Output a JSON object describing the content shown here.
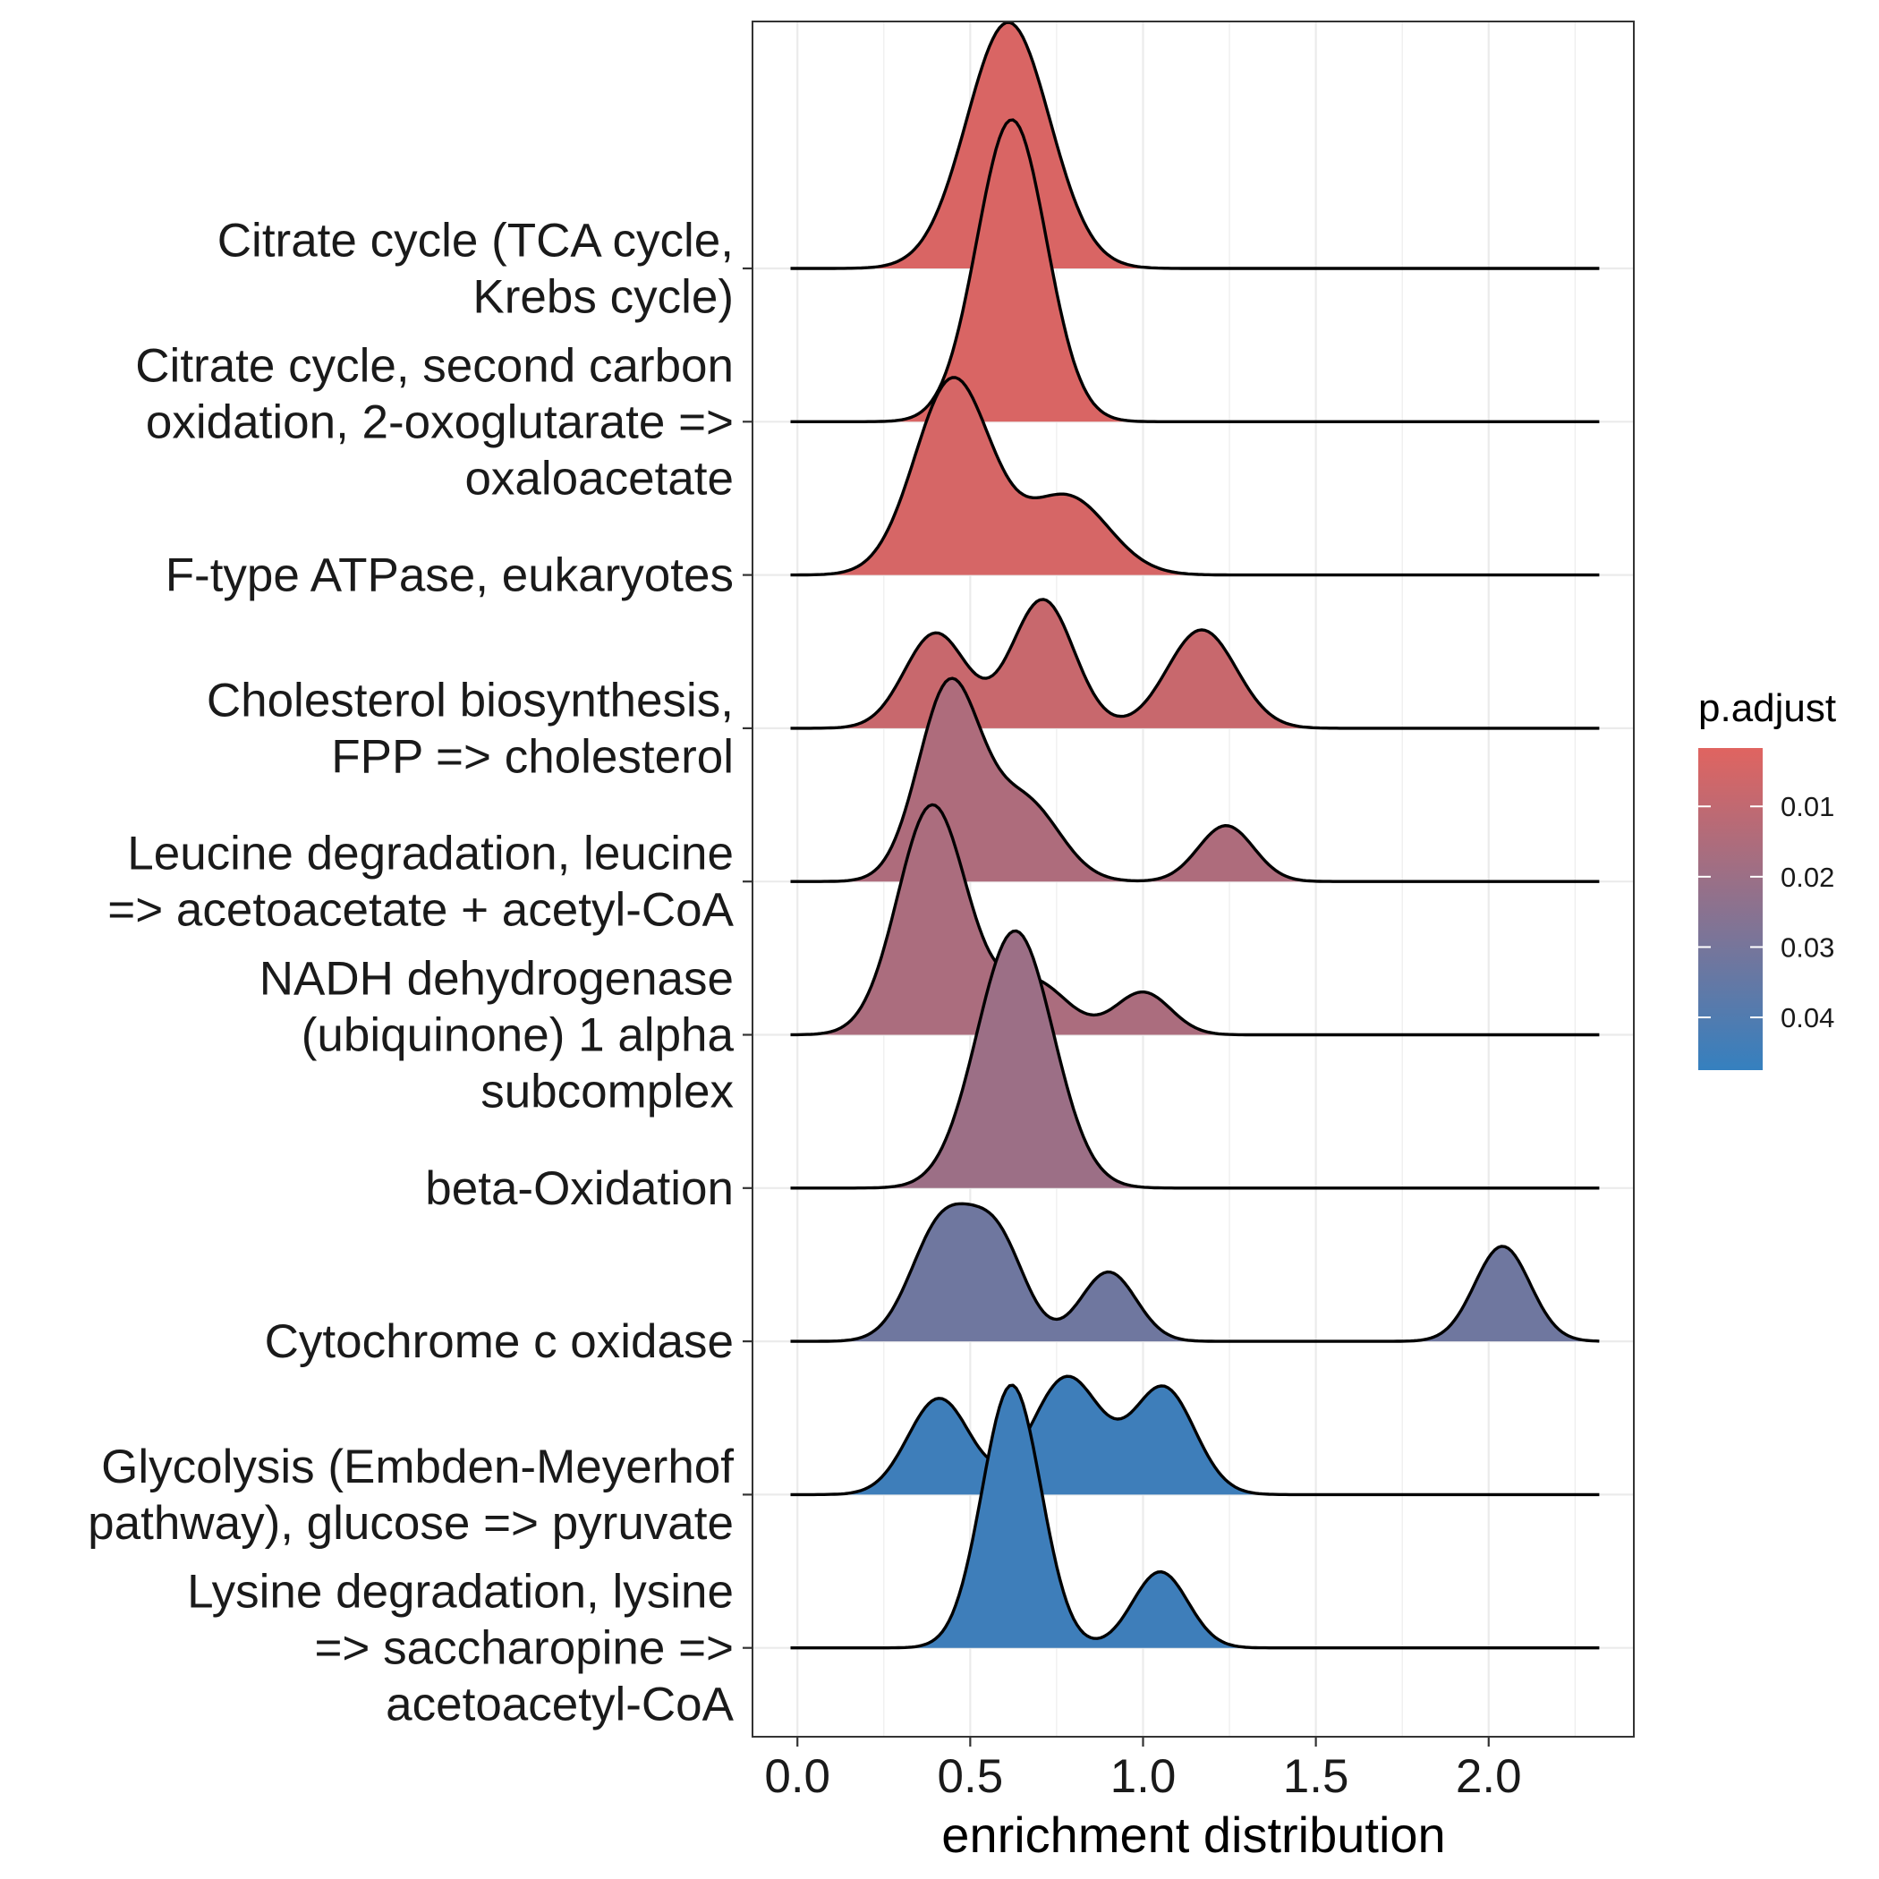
{
  "chart_data": {
    "type": "ridgeline",
    "title": "",
    "xlabel": "enrichment distribution",
    "ylabel": "",
    "xlim": [
      -0.13,
      2.42
    ],
    "x_ticks": [
      0.0,
      0.5,
      1.0,
      1.5,
      2.0
    ],
    "x_tick_labels": [
      "0.0",
      "0.5",
      "1.0",
      "1.5",
      "2.0"
    ],
    "grid": true,
    "density_range": [
      -0.02,
      2.32
    ],
    "series": [
      {
        "label": "Citrate cycle (TCA cycle, Krebs cycle)",
        "label_lines": [
          "Citrate cycle (TCA cycle,",
          "Krebs cycle)"
        ],
        "p_adjust": 0.0035,
        "peaks": [
          {
            "mu": 0.61,
            "sd": 0.12,
            "h": 2.2
          }
        ]
      },
      {
        "label": "Citrate cycle, second carbon oxidation, 2-oxoglutarate => oxaloacetate",
        "label_lines": [
          "Citrate cycle, second carbon",
          "oxidation, 2-oxoglutarate =>",
          "oxaloacetate"
        ],
        "p_adjust": 0.0035,
        "peaks": [
          {
            "mu": 0.62,
            "sd": 0.1,
            "h": 2.7
          }
        ]
      },
      {
        "label": "F-type ATPase, eukaryotes",
        "label_lines": [
          "F-type ATPase, eukaryotes"
        ],
        "p_adjust": 0.0045,
        "peaks": [
          {
            "mu": 0.45,
            "sd": 0.11,
            "h": 1.75
          },
          {
            "mu": 0.78,
            "sd": 0.12,
            "h": 0.7
          }
        ]
      },
      {
        "label": "Cholesterol biosynthesis, FPP => cholesterol",
        "label_lines": [
          "Cholesterol biosynthesis,",
          "FPP => cholesterol"
        ],
        "p_adjust": 0.008,
        "peaks": [
          {
            "mu": 0.4,
            "sd": 0.09,
            "h": 0.85
          },
          {
            "mu": 0.71,
            "sd": 0.09,
            "h": 1.15
          },
          {
            "mu": 1.17,
            "sd": 0.1,
            "h": 0.88
          }
        ]
      },
      {
        "label": "Leucine degradation, leucine => acetoacetate + acetyl-CoA",
        "label_lines": [
          "Leucine degradation, leucine",
          "=> acetoacetate + acetyl-CoA"
        ],
        "p_adjust": 0.015,
        "peaks": [
          {
            "mu": 0.44,
            "sd": 0.09,
            "h": 1.75
          },
          {
            "mu": 0.66,
            "sd": 0.1,
            "h": 0.7
          },
          {
            "mu": 1.24,
            "sd": 0.08,
            "h": 0.5
          }
        ]
      },
      {
        "label": "NADH dehydrogenase (ubiquinone) 1 alpha subcomplex",
        "label_lines": [
          "NADH dehydrogenase",
          "(ubiquinone) 1 alpha",
          "subcomplex"
        ],
        "p_adjust": 0.016,
        "peaks": [
          {
            "mu": 0.39,
            "sd": 0.1,
            "h": 2.05
          },
          {
            "mu": 0.68,
            "sd": 0.1,
            "h": 0.48
          },
          {
            "mu": 1.0,
            "sd": 0.08,
            "h": 0.38
          }
        ]
      },
      {
        "label": "beta-Oxidation",
        "label_lines": [
          "beta-Oxidation"
        ],
        "p_adjust": 0.02,
        "peaks": [
          {
            "mu": 0.63,
            "sd": 0.11,
            "h": 2.3
          }
        ]
      },
      {
        "label": "Cytochrome c oxidase",
        "label_lines": [
          "Cytochrome c oxidase"
        ],
        "p_adjust": 0.032,
        "peaks": [
          {
            "mu": 0.42,
            "sd": 0.09,
            "h": 1.05
          },
          {
            "mu": 0.58,
            "sd": 0.08,
            "h": 0.85
          },
          {
            "mu": 0.9,
            "sd": 0.08,
            "h": 0.62
          },
          {
            "mu": 2.04,
            "sd": 0.08,
            "h": 0.85
          }
        ]
      },
      {
        "label": "Glycolysis (Embden-Meyerhof pathway), glucose => pyruvate",
        "label_lines": [
          "Glycolysis (Embden-Meyerhof",
          "pathway), glucose => pyruvate"
        ],
        "p_adjust": 0.045,
        "peaks": [
          {
            "mu": 0.41,
            "sd": 0.09,
            "h": 0.86
          },
          {
            "mu": 0.78,
            "sd": 0.1,
            "h": 1.05
          },
          {
            "mu": 1.06,
            "sd": 0.09,
            "h": 0.95
          }
        ]
      },
      {
        "label": "Lysine degradation, lysine => saccharopine => acetoacetyl-CoA",
        "label_lines": [
          "Lysine degradation, lysine",
          "=> saccharopine =>",
          "acetoacetyl-CoA"
        ],
        "p_adjust": 0.045,
        "peaks": [
          {
            "mu": 0.62,
            "sd": 0.085,
            "h": 2.35
          },
          {
            "mu": 1.05,
            "sd": 0.08,
            "h": 0.68
          }
        ]
      }
    ],
    "legend": {
      "title": "p.adjust",
      "position": "right",
      "range": [
        0.0017,
        0.0475
      ],
      "ticks": [
        0.01,
        0.02,
        0.03,
        0.04
      ],
      "tick_labels": [
        "0.01",
        "0.02",
        "0.03",
        "0.04"
      ],
      "colors": {
        "low": "#e06460",
        "high": "#3580bf"
      }
    }
  }
}
